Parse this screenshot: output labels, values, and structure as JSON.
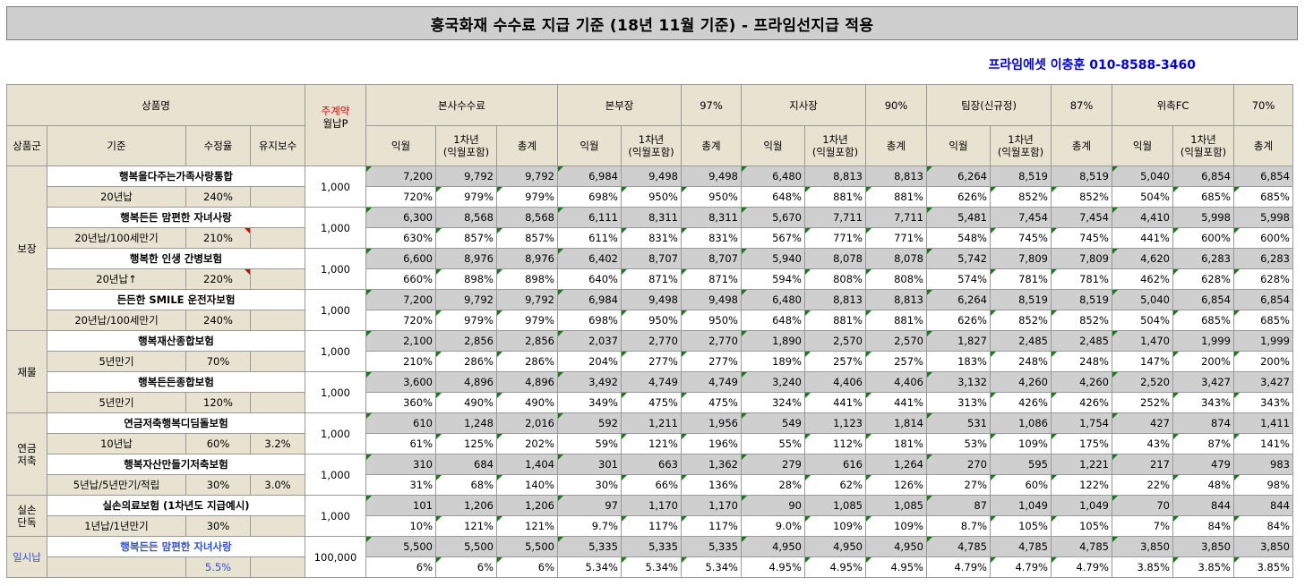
{
  "title": "흥국화재 수수료 지급 기준 (18년 11월 기준) - 프라임선지급 적용",
  "contact": "프라임에셋 이충훈 010-8588-3460",
  "headers": {
    "product": "상품명",
    "group": "상품군",
    "basis": "기준",
    "rate": "수정율",
    "maint": "유지보수",
    "main_contract_1": "주계약",
    "main_contract_2": "월납P",
    "levels": [
      {
        "name": "본사수수료",
        "pct": ""
      },
      {
        "name": "본부장",
        "pct": "97%"
      },
      {
        "name": "지사장",
        "pct": "90%"
      },
      {
        "name": "팀장(신규정)",
        "pct": "87%"
      },
      {
        "name": "위촉FC",
        "pct": "70%"
      }
    ],
    "sub": {
      "month": "익월",
      "year1": "1차년\n(익월포함)",
      "total": "총계"
    }
  },
  "groups": [
    {
      "label": "보장",
      "rows": 4
    },
    {
      "label": "재물",
      "rows": 2
    },
    {
      "label": "연금\n저축",
      "rows": 2
    },
    {
      "label": "실손\n단독",
      "rows": 1
    },
    {
      "label": "일시납",
      "rows": 1
    }
  ],
  "products": [
    {
      "name": "행복을다주는가족사랑통합",
      "cond": "20년납",
      "rate": "240%",
      "maint": "",
      "premium": "1,000",
      "amt": [
        "7,200",
        "9,792",
        "9,792",
        "6,984",
        "9,498",
        "9,498",
        "6,480",
        "8,813",
        "8,813",
        "6,264",
        "8,519",
        "8,519",
        "5,040",
        "6,854",
        "6,854"
      ],
      "pct": [
        "720%",
        "979%",
        "979%",
        "698%",
        "950%",
        "950%",
        "648%",
        "881%",
        "881%",
        "626%",
        "852%",
        "852%",
        "504%",
        "685%",
        "685%"
      ]
    },
    {
      "name": "행복든든 맘편한 자녀사랑",
      "cond": "20년납/100세만기",
      "rate": "210%",
      "maint": "",
      "premium": "1,000",
      "amt": [
        "6,300",
        "8,568",
        "8,568",
        "6,111",
        "8,311",
        "8,311",
        "5,670",
        "7,711",
        "7,711",
        "5,481",
        "7,454",
        "7,454",
        "4,410",
        "5,998",
        "5,998"
      ],
      "pct": [
        "630%",
        "857%",
        "857%",
        "611%",
        "831%",
        "831%",
        "567%",
        "771%",
        "771%",
        "548%",
        "745%",
        "745%",
        "441%",
        "600%",
        "600%"
      ]
    },
    {
      "name": "행복한 인생 간병보험",
      "cond": "20년납↑",
      "rate": "220%",
      "maint": "",
      "premium": "1,000",
      "amt": [
        "6,600",
        "8,976",
        "8,976",
        "6,402",
        "8,707",
        "8,707",
        "5,940",
        "8,078",
        "8,078",
        "5,742",
        "7,809",
        "7,809",
        "4,620",
        "6,283",
        "6,283"
      ],
      "pct": [
        "660%",
        "898%",
        "898%",
        "640%",
        "871%",
        "871%",
        "594%",
        "808%",
        "808%",
        "574%",
        "781%",
        "781%",
        "462%",
        "628%",
        "628%"
      ]
    },
    {
      "name": "든든한 SMILE 운전자보험",
      "cond": "20년납/100세만기",
      "rate": "240%",
      "maint": "",
      "premium": "1,000",
      "amt": [
        "7,200",
        "9,792",
        "9,792",
        "6,984",
        "9,498",
        "9,498",
        "6,480",
        "8,813",
        "8,813",
        "6,264",
        "8,519",
        "8,519",
        "5,040",
        "6,854",
        "6,854"
      ],
      "pct": [
        "720%",
        "979%",
        "979%",
        "698%",
        "950%",
        "950%",
        "648%",
        "881%",
        "881%",
        "626%",
        "852%",
        "852%",
        "504%",
        "685%",
        "685%"
      ]
    },
    {
      "name": "행복재산종합보험",
      "cond": "5년만기",
      "rate": "70%",
      "maint": "",
      "premium": "1,000",
      "amt": [
        "2,100",
        "2,856",
        "2,856",
        "2,037",
        "2,770",
        "2,770",
        "1,890",
        "2,570",
        "2,570",
        "1,827",
        "2,485",
        "2,485",
        "1,470",
        "1,999",
        "1,999"
      ],
      "pct": [
        "210%",
        "286%",
        "286%",
        "204%",
        "277%",
        "277%",
        "189%",
        "257%",
        "257%",
        "183%",
        "248%",
        "248%",
        "147%",
        "200%",
        "200%"
      ]
    },
    {
      "name": "행복든든종합보험",
      "cond": "5년만기",
      "rate": "120%",
      "maint": "",
      "premium": "1,000",
      "amt": [
        "3,600",
        "4,896",
        "4,896",
        "3,492",
        "4,749",
        "4,749",
        "3,240",
        "4,406",
        "4,406",
        "3,132",
        "4,260",
        "4,260",
        "2,520",
        "3,427",
        "3,427"
      ],
      "pct": [
        "360%",
        "490%",
        "490%",
        "349%",
        "475%",
        "475%",
        "324%",
        "441%",
        "441%",
        "313%",
        "426%",
        "426%",
        "252%",
        "343%",
        "343%"
      ]
    },
    {
      "name": "연금저축행복디딤돌보험",
      "cond": "10년납",
      "rate": "60%",
      "maint": "3.2%",
      "premium": "1,000",
      "amt": [
        "610",
        "1,248",
        "2,016",
        "592",
        "1,211",
        "1,956",
        "549",
        "1,123",
        "1,814",
        "531",
        "1,086",
        "1,754",
        "427",
        "874",
        "1,411"
      ],
      "pct": [
        "61%",
        "125%",
        "202%",
        "59%",
        "121%",
        "196%",
        "55%",
        "112%",
        "181%",
        "53%",
        "109%",
        "175%",
        "43%",
        "87%",
        "141%"
      ]
    },
    {
      "name": "행복자산만들기저축보험",
      "cond": "5년납/5년만기/적립",
      "rate": "30%",
      "maint": "3.0%",
      "premium": "1,000",
      "amt": [
        "310",
        "684",
        "1,404",
        "301",
        "663",
        "1,362",
        "279",
        "616",
        "1,264",
        "270",
        "595",
        "1,221",
        "217",
        "479",
        "983"
      ],
      "pct": [
        "31%",
        "68%",
        "140%",
        "30%",
        "66%",
        "136%",
        "28%",
        "62%",
        "126%",
        "27%",
        "60%",
        "122%",
        "22%",
        "48%",
        "98%"
      ]
    },
    {
      "name": "실손의료보험 (1차년도 지급예시)",
      "cond": "1년납/1년만기",
      "rate": "30%",
      "maint": "",
      "premium": "1,000",
      "amt": [
        "101",
        "1,206",
        "1,206",
        "97",
        "1,170",
        "1,170",
        "90",
        "1,085",
        "1,085",
        "87",
        "1,049",
        "1,049",
        "70",
        "844",
        "844"
      ],
      "pct": [
        "10%",
        "121%",
        "121%",
        "9.7%",
        "117%",
        "117%",
        "9.0%",
        "109%",
        "109%",
        "8.7%",
        "105%",
        "105%",
        "7%",
        "84%",
        "84%"
      ]
    },
    {
      "name": "행복든든 맘편한 자녀사랑",
      "cond": "",
      "rate": "5.5%",
      "maint": "",
      "premium": "100,000",
      "amt": [
        "5,500",
        "5,500",
        "5,500",
        "5,335",
        "5,335",
        "5,335",
        "4,950",
        "4,950",
        "4,950",
        "4,785",
        "4,785",
        "4,785",
        "3,850",
        "3,850",
        "3,850"
      ],
      "pct": [
        "6%",
        "6%",
        "6%",
        "5.34%",
        "5.34%",
        "5.34%",
        "4.95%",
        "4.95%",
        "4.95%",
        "4.79%",
        "4.79%",
        "4.79%",
        "3.85%",
        "3.85%",
        "3.85%"
      ]
    }
  ]
}
